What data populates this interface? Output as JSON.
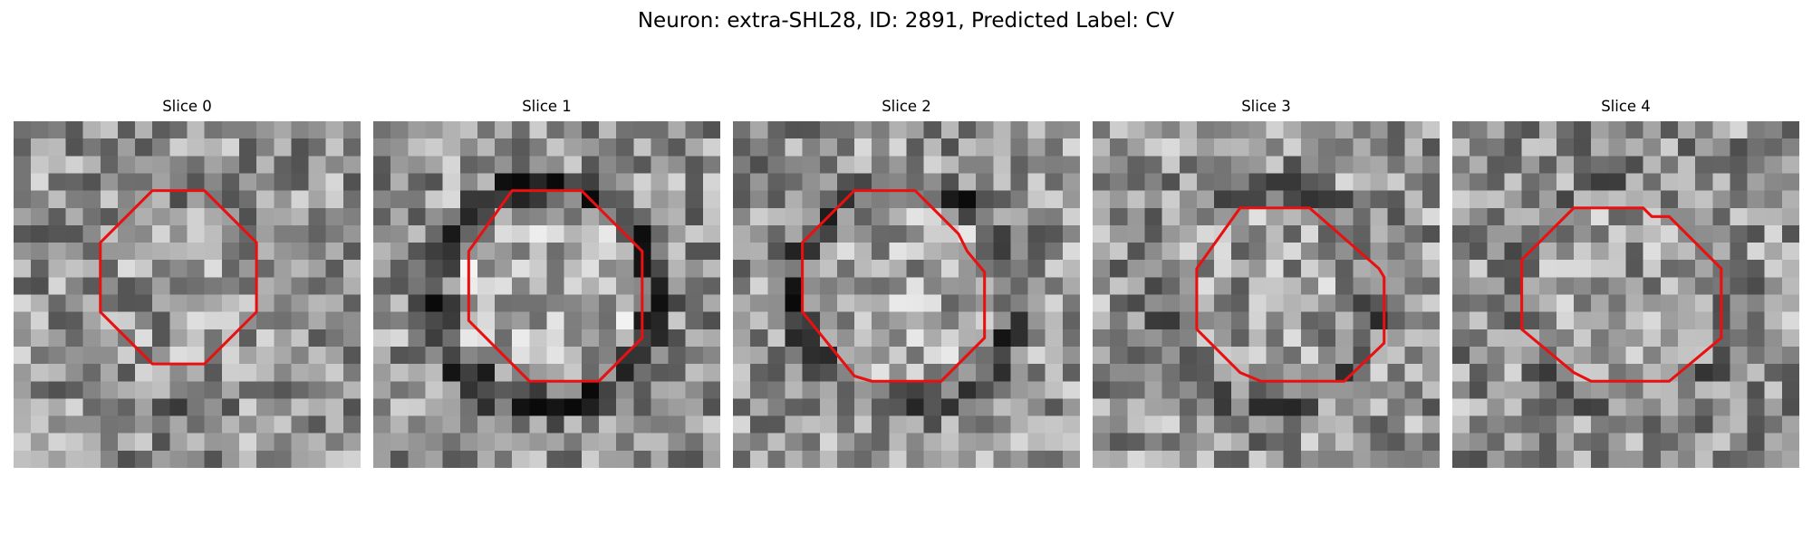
{
  "figure": {
    "title": "Neuron: extra-SHL28, ID: 2891, Predicted Label: CV"
  },
  "contour_color": "#e81010",
  "panels": [
    {
      "title": "Slice 0",
      "seed": 11,
      "ring": 0.15,
      "outline": [
        [
          8,
          4
        ],
        [
          11,
          4
        ],
        [
          14,
          7
        ],
        [
          14,
          11
        ],
        [
          11,
          14
        ],
        [
          8,
          14
        ],
        [
          5,
          11
        ],
        [
          5,
          7
        ]
      ]
    },
    {
      "title": "Slice 1",
      "seed": 23,
      "ring": 0.85,
      "outline": [
        [
          8,
          4
        ],
        [
          12,
          4
        ],
        [
          15.5,
          7.5
        ],
        [
          15.5,
          12.5
        ],
        [
          13,
          15
        ],
        [
          9,
          15
        ],
        [
          5.5,
          11.5
        ],
        [
          5.5,
          7.5
        ]
      ]
    },
    {
      "title": "Slice 2",
      "seed": 37,
      "ring": 0.55,
      "outline": [
        [
          7,
          4
        ],
        [
          10.5,
          4
        ],
        [
          13,
          6.5
        ],
        [
          13.5,
          7.5
        ],
        [
          14.5,
          8.7
        ],
        [
          14.5,
          12.5
        ],
        [
          12,
          15
        ],
        [
          8,
          15
        ],
        [
          7,
          14.7
        ],
        [
          4,
          11
        ],
        [
          4,
          7
        ]
      ]
    },
    {
      "title": "Slice 3",
      "seed": 51,
      "ring": 0.35,
      "outline": [
        [
          8.5,
          5
        ],
        [
          12.5,
          5
        ],
        [
          16.5,
          8.5
        ],
        [
          16.8,
          9
        ],
        [
          16.8,
          12.8
        ],
        [
          14.5,
          15
        ],
        [
          9.7,
          15
        ],
        [
          8.5,
          14.5
        ],
        [
          6,
          12
        ],
        [
          6,
          8.5
        ]
      ]
    },
    {
      "title": "Slice 4",
      "seed": 67,
      "ring": 0.2,
      "outline": [
        [
          7,
          5
        ],
        [
          11,
          5
        ],
        [
          11.5,
          5.5
        ],
        [
          12.5,
          5.5
        ],
        [
          15.5,
          8.5
        ],
        [
          15.5,
          12.5
        ],
        [
          12.5,
          15
        ],
        [
          8,
          15
        ],
        [
          7,
          14.5
        ],
        [
          4,
          12
        ],
        [
          4,
          8
        ]
      ]
    }
  ]
}
